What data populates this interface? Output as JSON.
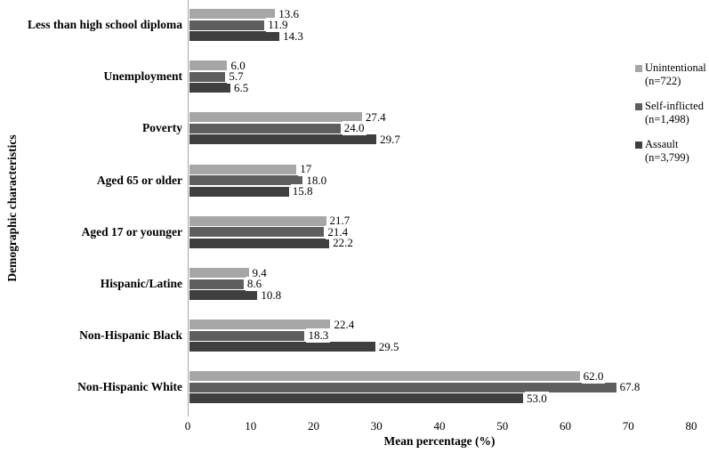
{
  "chart_data": {
    "type": "bar",
    "orientation": "horizontal",
    "title": "",
    "xlabel": "Mean percentage (%)",
    "ylabel": "Demographic characteristics",
    "xlim": [
      0,
      80
    ],
    "xticks": [
      "0",
      "10",
      "20",
      "30",
      "40",
      "50",
      "60",
      "70",
      "80"
    ],
    "grid": false,
    "legend_position": "right",
    "categories": [
      "Less than high school diploma",
      "Unemployment",
      "Poverty",
      "Aged 65 or older",
      "Aged 17 or younger",
      "Hispanic/Latine",
      "Non-Hispanic Black",
      "Non-Hispanic White"
    ],
    "series": [
      {
        "name": "Unintentional (n=722)",
        "legend_lines": [
          "Unintentional",
          "(n=722)"
        ],
        "color": "#a6a6a6",
        "values": [
          13.6,
          6.0,
          27.4,
          17,
          21.7,
          9.4,
          22.4,
          62.0
        ],
        "labels": [
          "13.6",
          "6.0",
          "27.4",
          "17",
          "21.7",
          "9.4",
          "22.4",
          "62.0"
        ]
      },
      {
        "name": "Self-inflicted (n=1,498)",
        "legend_lines": [
          "Self-inflicted",
          "(n=1,498)"
        ],
        "color": "#5e5e5e",
        "values": [
          11.9,
          5.7,
          24.0,
          18.0,
          21.4,
          8.6,
          18.3,
          67.8
        ],
        "labels": [
          "11.9",
          "5.7",
          "24.0",
          "18.0",
          "21.4",
          "8.6",
          "18.3",
          "67.8"
        ]
      },
      {
        "name": "Assault (n=3,799)",
        "legend_lines": [
          "Assault",
          "(n=3,799)"
        ],
        "color": "#3f3f3f",
        "values": [
          14.3,
          6.5,
          29.7,
          15.8,
          22.2,
          10.8,
          29.5,
          53.0
        ],
        "labels": [
          "14.3",
          "6.5",
          "29.7",
          "15.8",
          "22.2",
          "10.8",
          "29.5",
          "53.0"
        ]
      }
    ],
    "colors": {
      "axis_line": "#a6a6a6",
      "text": "#000000"
    }
  }
}
